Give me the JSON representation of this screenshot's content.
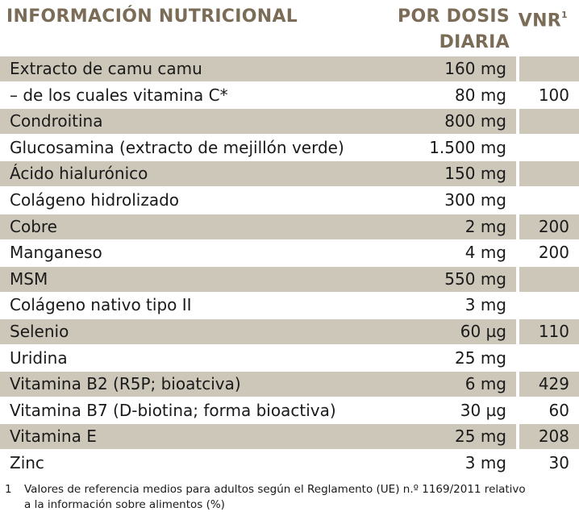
{
  "header": {
    "title": "INFORMACIÓN NUTRICIONAL",
    "dose": [
      "POR DOSIS",
      "DIARIA"
    ],
    "vnr": "VNR",
    "vnr_sup": "1"
  },
  "table": {
    "rows": [
      [
        "Extracto de camu camu",
        "160 mg",
        null
      ],
      [
        "– de los cuales vitamina C*",
        "80 mg",
        "100"
      ],
      [
        "Condroitina",
        "800 mg",
        null
      ],
      [
        "Glucosamina (extracto de mejillón verde)",
        "1.500 mg",
        null
      ],
      [
        "Ácido hialurónico",
        "150 mg",
        null
      ],
      [
        "Colágeno hidrolizado",
        "300 mg",
        null
      ],
      [
        "Cobre",
        "2 mg",
        "200"
      ],
      [
        "Manganeso",
        "4 mg",
        "200"
      ],
      [
        "MSM",
        "550 mg",
        null
      ],
      [
        "Colágeno nativo tipo II",
        "3 mg",
        null
      ],
      [
        "Selenio",
        "60 µg",
        "110"
      ],
      [
        "Uridina",
        "25 mg",
        null
      ],
      [
        "Vitamina B2 (R5P; bioatciva)",
        "6 mg",
        "429"
      ],
      [
        "Vitamina B7 (D-biotina; forma bioactiva)",
        "30 µg",
        "60"
      ],
      [
        "Vitamina E",
        "25 mg",
        "208"
      ],
      [
        "Zinc",
        "3 mg",
        "30"
      ]
    ]
  },
  "footnote": {
    "marker": "1",
    "lines": [
      "Valores de referencia medios para adultos según el Reglamento (UE) n.º 1169/2011 relativo",
      "a la información sobre alimentos (%)"
    ]
  }
}
